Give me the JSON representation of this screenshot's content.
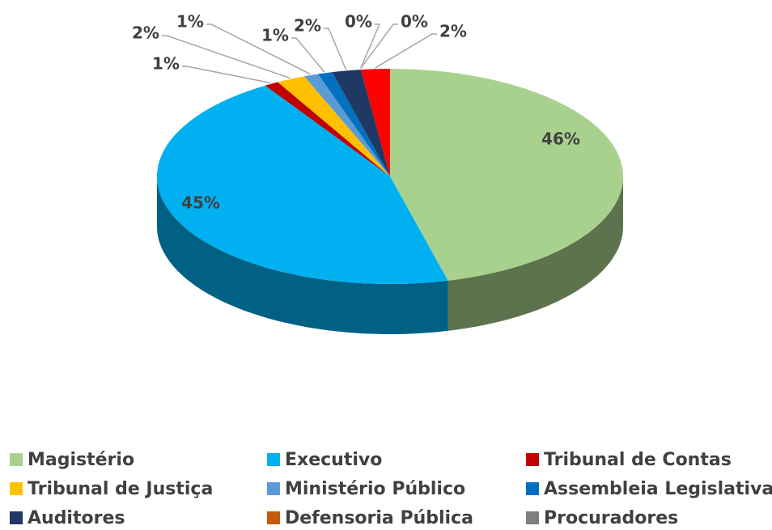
{
  "chart_data": {
    "type": "pie",
    "categories": [
      "Magistério",
      "Executivo",
      "Tribunal de Contas",
      "Tribunal de Justiça",
      "Ministério Público",
      "Assembleia Legislativa",
      "Auditores",
      "Defensoria Pública",
      "Procuradores",
      null
    ],
    "values": [
      46,
      45,
      1,
      2,
      1,
      1,
      2,
      0,
      0,
      2
    ],
    "value_labels": [
      "46%",
      "45%",
      "1%",
      "2%",
      "1%",
      "1%",
      "2%",
      "0%",
      "0%",
      "2%"
    ],
    "colors": [
      "#a9d18e",
      "#00b0f0",
      "#c00000",
      "#ffc000",
      "#5b9bd5",
      "#0070c0",
      "#203864",
      "#c55a11",
      "#7f7f7f",
      "#ff0000"
    ],
    "legend": "bottom"
  }
}
